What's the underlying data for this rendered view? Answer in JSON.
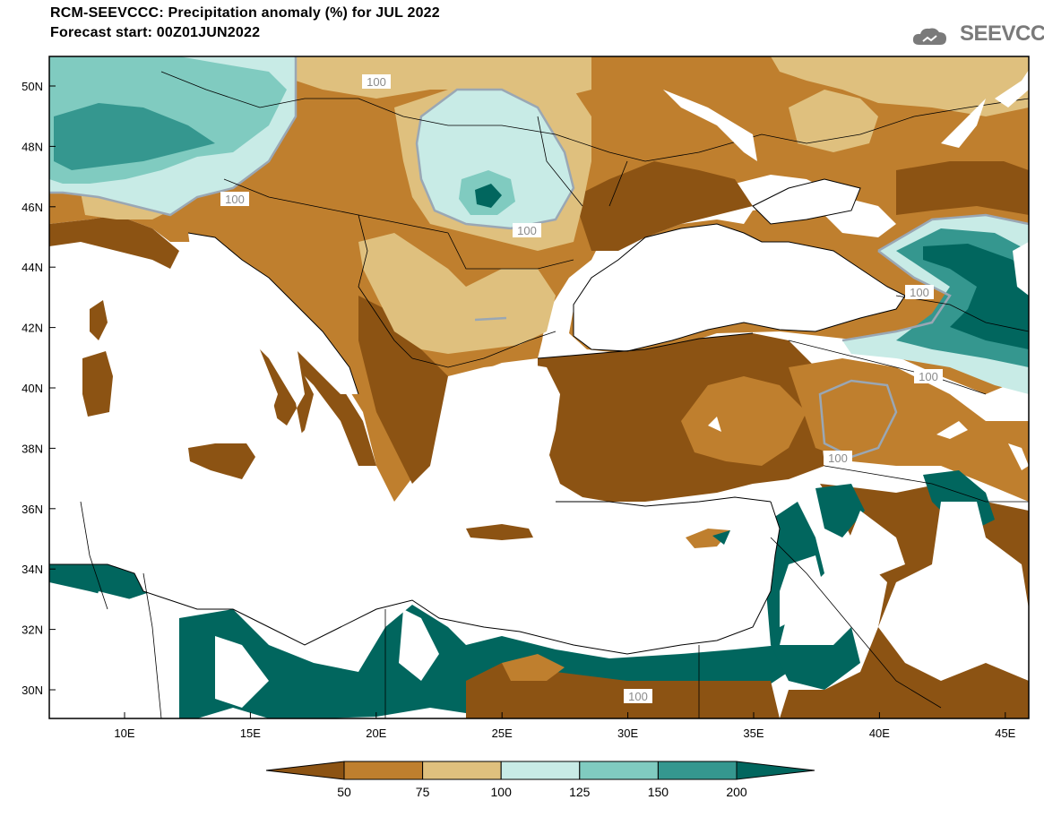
{
  "header": {
    "title_line1": "RCM-SEEVCCC: Precipitation anomaly (%) for JUL 2022",
    "title_line2": "Forecast start: 00Z01JUN2022"
  },
  "logo": {
    "text": "SEEVCCC",
    "icon": "cloud-icon"
  },
  "map": {
    "lat_labels": [
      "50N",
      "48N",
      "46N",
      "44N",
      "42N",
      "40N",
      "38N",
      "36N",
      "34N",
      "32N",
      "30N"
    ],
    "lon_labels": [
      "10E",
      "15E",
      "20E",
      "25E",
      "30E",
      "35E",
      "40E",
      "45E"
    ],
    "contour_labels": [
      "100",
      "100",
      "100",
      "100",
      "100",
      "100",
      "100"
    ]
  },
  "colorbar": {
    "ticks": [
      "50",
      "75",
      "100",
      "125",
      "150",
      "200"
    ],
    "colors": [
      "#8c5313",
      "#bf7f2e",
      "#dfc07e",
      "#c8ebe6",
      "#80cbc0",
      "#35978f",
      "#01665e"
    ]
  },
  "palette": {
    "ocean": "#ffffff",
    "lt50": "#8c5313",
    "r50_75": "#bf7f2e",
    "r75_100": "#dfc07e",
    "r100_125": "#c8ebe6",
    "r125_150": "#80cbc0",
    "r150_200": "#35978f",
    "gt200": "#01665e"
  }
}
